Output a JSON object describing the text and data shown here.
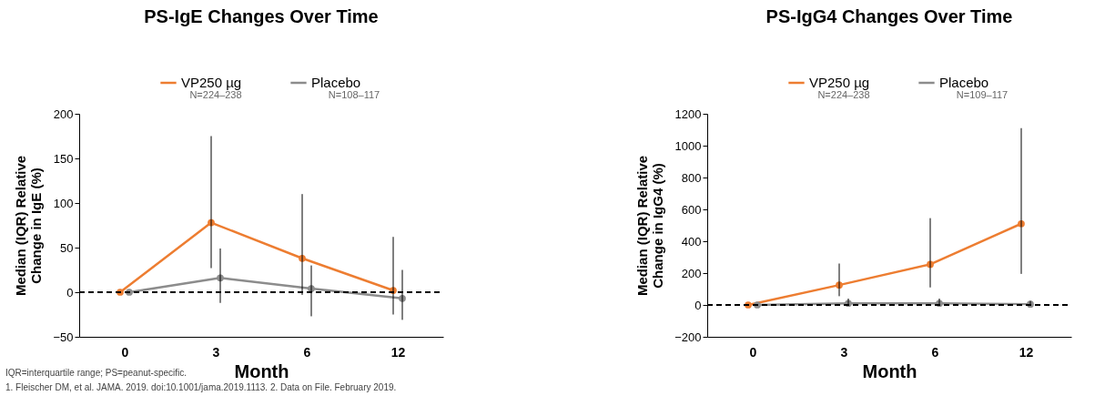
{
  "chart_data": [
    {
      "type": "line",
      "title": "PS-IgE Changes Over Time",
      "xlabel": "Month",
      "ylabel": "Median (IQR) Relative Change in IgE (%)",
      "categories": [
        "0",
        "3",
        "6",
        "12"
      ],
      "ylim": [
        -50,
        200
      ],
      "yticks": [
        -50,
        0,
        50,
        100,
        150,
        200
      ],
      "grid": false,
      "legend": "top",
      "marker": "circle",
      "line_style": "solid",
      "series": [
        {
          "name": "VP250 µg",
          "color": "#ed7d31",
          "values": [
            0,
            78,
            38,
            2
          ],
          "errors": [
            null,
            [
              27,
              175
            ],
            [
              -3,
              110
            ],
            [
              -25,
              62
            ]
          ]
        },
        {
          "name": "Placebo",
          "color": "#8c8c8c",
          "values": [
            0,
            16,
            4,
            -7
          ],
          "errors": [
            null,
            [
              -12,
              49
            ],
            [
              -27,
              30
            ],
            [
              -31,
              25
            ]
          ]
        }
      ],
      "ref_lines": [
        {
          "axis": "y",
          "value": 0,
          "color": "#000000",
          "line_style": "dashed"
        }
      ],
      "annotations": [
        "N=224–238",
        "N=108–117",
        "IQR=interquartile range; PS=peanut-specific.",
        "1. Fleischer DM, et al. JAMA. 2019. doi:10.1001/jama.2019.1113. 2. Data on File. February 2019."
      ]
    },
    {
      "type": "line",
      "title": "PS-IgG4 Changes Over Time",
      "xlabel": "Month",
      "ylabel": "Median (IQR) Relative Change in IgG4 (%)",
      "categories": [
        "0",
        "3",
        "6",
        "12"
      ],
      "ylim": [
        -200,
        1200
      ],
      "yticks": [
        -200,
        0,
        200,
        400,
        600,
        800,
        1000,
        1200
      ],
      "grid": false,
      "legend": "top",
      "marker": "circle",
      "line_style": "solid",
      "series": [
        {
          "name": "VP250 µg",
          "color": "#ed7d31",
          "values": [
            0,
            125,
            255,
            510
          ],
          "errors": [
            null,
            [
              55,
              260
            ],
            [
              110,
              545
            ],
            [
              195,
              1110
            ]
          ]
        },
        {
          "name": "Placebo",
          "color": "#8c8c8c",
          "values": [
            0,
            10,
            10,
            5
          ],
          "errors": [
            null,
            [
              0,
              40
            ],
            [
              -5,
              40
            ],
            [
              -5,
              25
            ]
          ]
        }
      ],
      "ref_lines": [
        {
          "axis": "y",
          "value": 0,
          "color": "#000000",
          "line_style": "dashed"
        }
      ],
      "annotations": [
        "N=224–238",
        "N=109–117"
      ]
    }
  ]
}
